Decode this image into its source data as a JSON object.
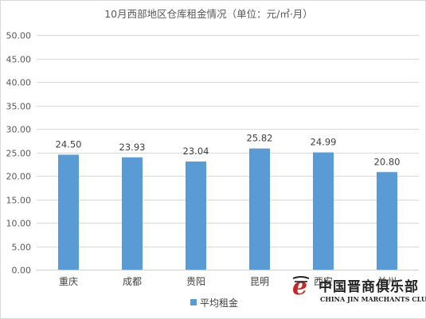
{
  "chart_data": {
    "type": "bar",
    "title": "10月西部地区仓库租金情况（单位：元/㎡·月）",
    "categories": [
      "重庆",
      "成都",
      "贵阳",
      "昆明",
      "西安",
      "兰州"
    ],
    "series": [
      {
        "name": "平均租金",
        "values": [
          24.5,
          23.93,
          23.04,
          25.82,
          24.99,
          20.8
        ],
        "color": "#5b9bd5"
      }
    ],
    "data_labels": [
      "24.50",
      "23.93",
      "23.04",
      "25.82",
      "24.99",
      "20.80"
    ],
    "yticks": [
      "0.00",
      "5.00",
      "10.00",
      "15.00",
      "20.00",
      "25.00",
      "30.00",
      "35.00",
      "40.00",
      "45.00",
      "50.00"
    ],
    "ylim": [
      0,
      50
    ],
    "grid": true,
    "legend_position": "bottom",
    "xlabel": "",
    "ylabel": ""
  },
  "watermark": {
    "text_cn": "中国晋商俱乐部",
    "text_en": "CHINA JIN MARCHANTS CLUB",
    "logo_text": "晋e"
  }
}
